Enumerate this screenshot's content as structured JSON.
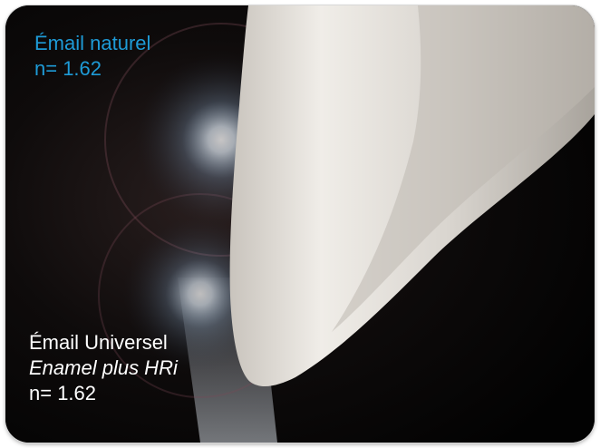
{
  "natural_enamel": {
    "name": "Émail naturel",
    "index": "n= 1.62",
    "color": "#1e9bd7"
  },
  "universal_enamel": {
    "name": "Émail Universel",
    "product": "Enamel plus HRi",
    "index": "n= 1.62",
    "color": "#ffffff"
  }
}
